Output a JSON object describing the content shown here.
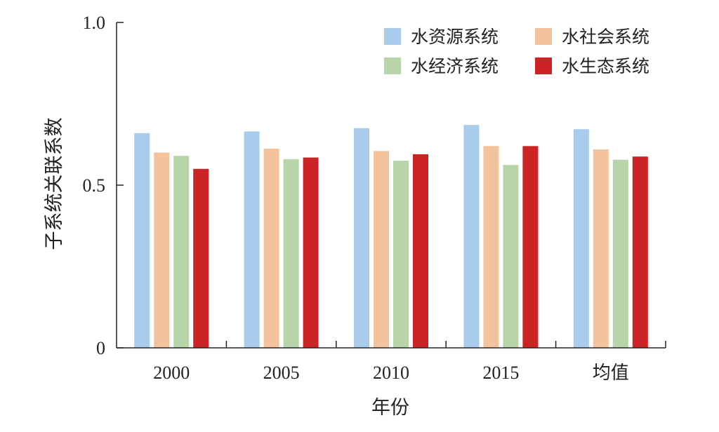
{
  "chart_data": {
    "type": "bar",
    "categories": [
      "2000",
      "2005",
      "2010",
      "2015",
      "均值"
    ],
    "series": [
      {
        "name": "水资源系统",
        "color": "#a9cbec",
        "values": [
          0.66,
          0.665,
          0.675,
          0.685,
          0.672
        ]
      },
      {
        "name": "水社会系统",
        "color": "#f2c39c",
        "values": [
          0.6,
          0.612,
          0.605,
          0.62,
          0.61
        ]
      },
      {
        "name": "水经济系统",
        "color": "#b7d5a8",
        "values": [
          0.59,
          0.58,
          0.575,
          0.562,
          0.578
        ]
      },
      {
        "name": "水生态系统",
        "color": "#cc2424",
        "values": [
          0.55,
          0.585,
          0.595,
          0.62,
          0.588
        ]
      }
    ],
    "xlabel": "年份",
    "ylabel": "子系统关联系数",
    "ylim": [
      0,
      1.0
    ],
    "yticks": [
      "0",
      "0.5",
      "1.0"
    ],
    "legend_position": "top-right",
    "grid": false
  }
}
